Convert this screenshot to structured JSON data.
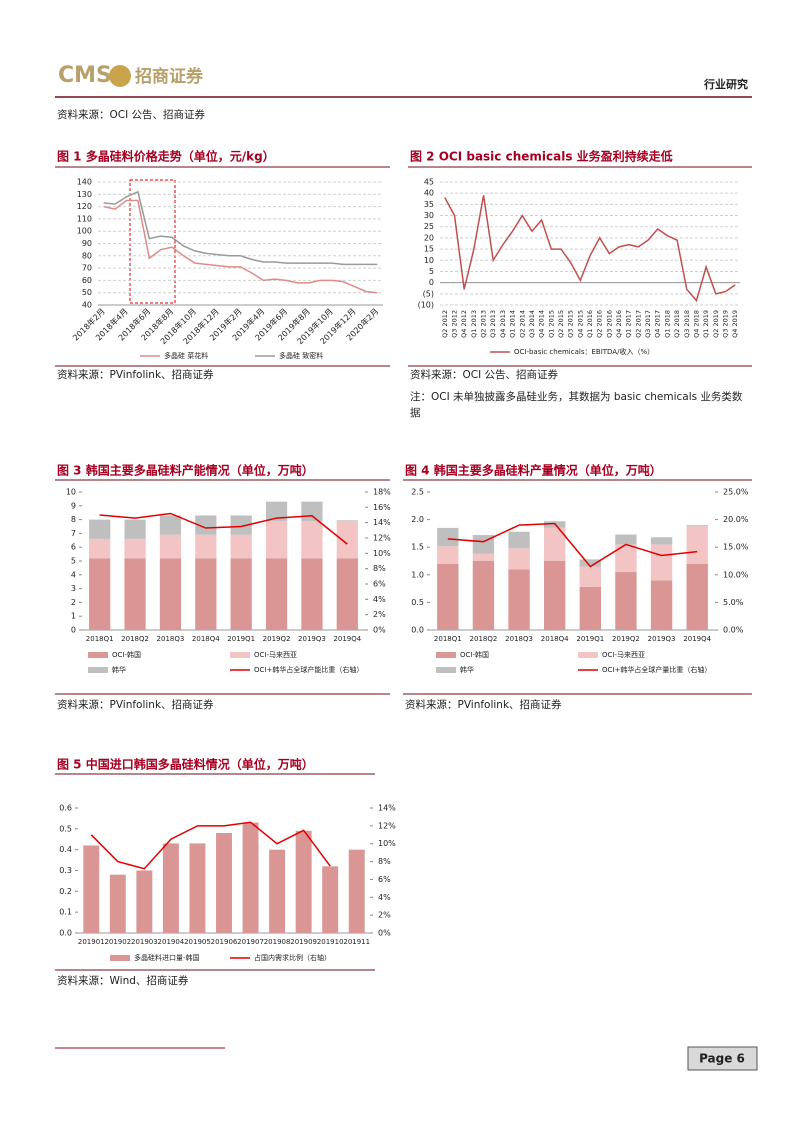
{
  "header": {
    "logo": "CMS",
    "company": "招商证券",
    "section": "行业研究"
  },
  "sources": [
    "资料来源：OCI 公告、招商证券",
    "资料来源：PVinfolink、招商证券",
    "资料来源：OCI 公告、招商证券",
    "资料来源：PVinfolink、招商证券",
    "资料来源：PVinfolink、招商证券",
    "资料来源：Wind、招商证券"
  ],
  "note": "注：OCI 未单独披露多晶硅业务，其数据为 basic chemicals 业务类数据",
  "footer": {
    "page": "Page 6"
  },
  "chart_data": [
    {
      "type": "line",
      "title": "图 1 多晶硅料价格走势（单位，元/kg）",
      "categories": [
        "2018年2月",
        null,
        "2018年4月",
        null,
        "2018年6月",
        null,
        "2018年8月",
        null,
        "2018年10月",
        null,
        "2018年12月",
        null,
        "2019年2月",
        null,
        "2019年4月",
        null,
        "2019年6月",
        null,
        "2019年8月",
        null,
        "2019年10月",
        null,
        "2019年12月",
        null,
        "2020年2月"
      ],
      "series": [
        {
          "name": "多晶硅 菜花料",
          "color": "#e08a8a",
          "values": [
            120,
            118,
            125,
            125,
            78,
            85,
            87,
            80,
            74,
            73,
            72,
            71,
            71,
            66,
            60,
            61,
            60,
            58,
            58,
            60,
            60,
            59,
            55,
            51,
            50
          ]
        },
        {
          "name": "多晶硅 致密料",
          "color": "#9a9a9a",
          "values": [
            123,
            122,
            128,
            132,
            94,
            96,
            95,
            88,
            84,
            82,
            81,
            80,
            80,
            77,
            75,
            75,
            74,
            74,
            74,
            74,
            74,
            73,
            73,
            73,
            73
          ]
        }
      ],
      "ylim": [
        40,
        140
      ],
      "yticks": [
        40,
        50,
        60,
        70,
        80,
        90,
        100,
        110,
        120,
        130,
        140
      ],
      "grid": true
    },
    {
      "type": "line",
      "title": "图 2 OCI basic chemicals 业务盈利持续走低",
      "categories": [
        "Q2 2012",
        "Q3 2012",
        "Q4 2012",
        "Q1 2013",
        "Q2 2013",
        "Q3 2013",
        "Q4 2013",
        "Q1 2014",
        "Q2 2014",
        "Q3 2014",
        "Q4 2014",
        "Q1 2015",
        "Q2 2015",
        "Q3 2015",
        "Q4 2015",
        "Q1 2016",
        "Q2 2016",
        "Q3 2016",
        "Q4 2016",
        "Q1 2017",
        "Q2 2017",
        "Q3 2017",
        "Q4 2017",
        "Q1 2018",
        "Q2 2018",
        "Q3 2018",
        "Q4 2018",
        "Q1 2019",
        "Q2 2019",
        "Q3 2019",
        "Q4 2019"
      ],
      "series": [
        {
          "name": "OCI-basic chemicals：EBITDA/收入（%）",
          "color": "#c0504d",
          "values": [
            38,
            30,
            -3,
            15,
            39,
            10,
            17,
            23,
            30,
            23,
            28,
            15,
            15,
            9,
            1,
            12,
            20,
            13,
            16,
            17,
            16,
            19,
            24,
            21,
            19,
            -3,
            -8,
            7,
            -5,
            -4,
            -1
          ]
        }
      ],
      "ylim": [
        -10,
        45
      ],
      "yticks": [
        {
          "value": -10,
          "label": "(10)"
        },
        {
          "value": -5,
          "label": "(5)"
        },
        0,
        5,
        10,
        15,
        20,
        25,
        30,
        35,
        40,
        45
      ],
      "grid": true
    },
    {
      "type": "bar",
      "stacked": true,
      "title": "图 3 韩国主要多晶硅料产能情况（单位，万吨）",
      "categories": [
        "2018Q1",
        "2018Q2",
        "2018Q3",
        "2018Q4",
        "2019Q1",
        "2019Q2",
        "2019Q3",
        "2019Q4"
      ],
      "series": [
        {
          "name": "OCI-韩国",
          "color": "#d99694",
          "values": [
            5.2,
            5.2,
            5.2,
            5.2,
            5.2,
            5.2,
            5.2,
            5.2
          ]
        },
        {
          "name": "OCI-马来西亚",
          "color": "#f2c4c4",
          "values": [
            1.4,
            1.4,
            1.7,
            1.7,
            1.7,
            2.7,
            2.7,
            2.7
          ]
        },
        {
          "name": "韩华",
          "color": "#bfbfbf",
          "values": [
            1.4,
            1.4,
            1.4,
            1.4,
            1.4,
            1.4,
            1.4,
            0.05
          ]
        },
        {
          "name": "OCI+韩华占全球产能比重（右轴）",
          "type": "line",
          "axis": "y2",
          "color": "#e00000",
          "values": [
            15.0,
            14.6,
            15.2,
            13.3,
            13.5,
            14.6,
            14.9,
            11.2
          ]
        }
      ],
      "ylim": [
        0,
        10
      ],
      "yticks": [
        0,
        1,
        2,
        3,
        4,
        5,
        6,
        7,
        8,
        9,
        10
      ],
      "y2lim": [
        0,
        18
      ],
      "y2ticks": [
        {
          "value": 0,
          "label": "0%"
        },
        {
          "value": 2,
          "label": "2%"
        },
        {
          "value": 4,
          "label": "4%"
        },
        {
          "value": 6,
          "label": "6%"
        },
        {
          "value": 8,
          "label": "8%"
        },
        {
          "value": 10,
          "label": "10%"
        },
        {
          "value": 12,
          "label": "12%"
        },
        {
          "value": 14,
          "label": "14%"
        },
        {
          "value": 16,
          "label": "16%"
        },
        {
          "value": 18,
          "label": "18%"
        }
      ],
      "grid": false
    },
    {
      "type": "bar",
      "stacked": true,
      "title": "图 4 韩国主要多晶硅料产量情况（单位，万吨）",
      "categories": [
        "2018Q1",
        "2018Q2",
        "2018Q3",
        "2018Q4",
        "2019Q1",
        "2019Q2",
        "2019Q3",
        "2019Q4"
      ],
      "series": [
        {
          "name": "OCI-韩国",
          "color": "#d99694",
          "values": [
            1.2,
            1.25,
            1.1,
            1.25,
            0.78,
            1.05,
            0.9,
            1.2
          ]
        },
        {
          "name": "OCI-马来西亚",
          "color": "#f2c4c4",
          "values": [
            0.32,
            0.13,
            0.38,
            0.6,
            0.37,
            0.5,
            0.65,
            0.68
          ]
        },
        {
          "name": "韩华",
          "color": "#bfbfbf",
          "values": [
            0.33,
            0.34,
            0.3,
            0.12,
            0.13,
            0.18,
            0.13,
            0.02
          ]
        },
        {
          "name": "OCI+韩华占全球产量比重（右轴）",
          "type": "line",
          "axis": "y2",
          "color": "#e00000",
          "values": [
            16.5,
            16.0,
            19.0,
            19.3,
            11.5,
            15.5,
            13.5,
            14.2
          ]
        }
      ],
      "ylim": [
        0,
        2.5
      ],
      "yticks": [
        {
          "value": 0,
          "label": "0.0"
        },
        0.5,
        {
          "value": 1,
          "label": "1.0"
        },
        1.5,
        {
          "value": 2,
          "label": "2.0"
        },
        2.5
      ],
      "y2lim": [
        0,
        25
      ],
      "y2ticks": [
        {
          "value": 0,
          "label": "0.0%"
        },
        {
          "value": 5,
          "label": "5.0%"
        },
        {
          "value": 10,
          "label": "10.0%"
        },
        {
          "value": 15,
          "label": "15.0%"
        },
        {
          "value": 20,
          "label": "20.0%"
        },
        {
          "value": 25,
          "label": "25.0%"
        }
      ],
      "grid": false
    },
    {
      "type": "bar",
      "stacked": false,
      "title": "图 5 中国进口韩国多晶硅料情况（单位，万吨）",
      "categories": [
        "201901",
        "201902",
        "201903",
        "201904",
        "201905",
        "201906",
        "201907",
        "201908",
        "201909",
        "201910",
        "201911"
      ],
      "series": [
        {
          "name": "多晶硅料进口量-韩国",
          "color": "#d99694",
          "values": [
            0.42,
            0.28,
            0.3,
            0.43,
            0.43,
            0.48,
            0.53,
            0.4,
            0.49,
            0.32,
            0.4
          ]
        },
        {
          "name": "占国内需求比例（右轴）",
          "type": "line",
          "axis": "y2",
          "color": "#e00000",
          "values": [
            11,
            8,
            7.2,
            10.5,
            12,
            12,
            12.4,
            10,
            11.5,
            7.5,
            null
          ]
        }
      ],
      "ylim": [
        0,
        0.6
      ],
      "yticks": [
        {
          "value": 0,
          "label": "0.0"
        },
        0.1,
        0.2,
        0.3,
        0.4,
        0.5,
        0.6
      ],
      "y2lim": [
        0,
        14
      ],
      "y2ticks": [
        {
          "value": 0,
          "label": "0%"
        },
        {
          "value": 2,
          "label": "2%"
        },
        {
          "value": 4,
          "label": "4%"
        },
        {
          "value": 6,
          "label": "6%"
        },
        {
          "value": 8,
          "label": "8%"
        },
        {
          "value": 10,
          "label": "10%"
        },
        {
          "value": 12,
          "label": "12%"
        },
        {
          "value": 14,
          "label": "14%"
        }
      ],
      "grid": false
    }
  ]
}
